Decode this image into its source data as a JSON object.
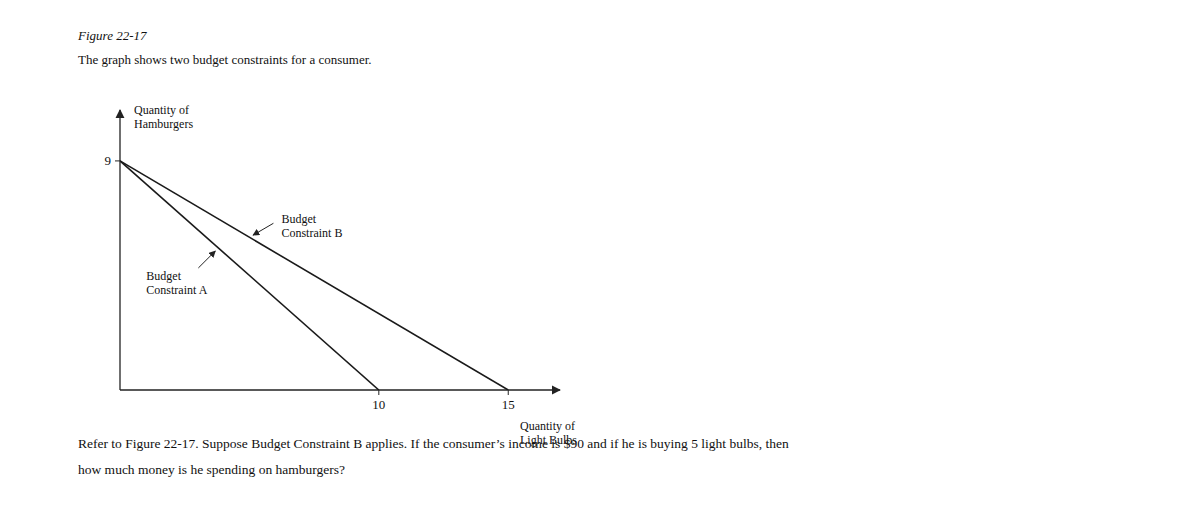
{
  "chart_data": {
    "type": "line",
    "title": "Figure 22-17",
    "subtitle": "The graph shows two budget constraints for a consumer.",
    "xlabel": "Quantity of\nLight Bulbs",
    "ylabel": "Quantity of\nHamburgers",
    "series": [
      {
        "x": [
          0,
          15
        ],
        "values": [
          9,
          0
        ],
        "color": "#1a1a1a"
      },
      {
        "x": [
          0,
          10
        ],
        "values": [
          9,
          0
        ],
        "color": "#1a1a1a"
      }
    ],
    "annotations": [
      {
        "text": "Budget\nConstraint B"
      },
      {
        "text": "Budget\nConstraint A"
      }
    ],
    "caption": [
      "Refer to Figure 22-17. Suppose Budget Constraint B applies. If the consumer’s income is $90 and if he is buying 5 light bulbs, then",
      "how much money is he spending on hamburgers?"
    ],
    "xlim": [
      0,
      17
    ],
    "ylim": [
      0,
      11
    ],
    "xticks": [
      10,
      15
    ],
    "yticks": [
      9
    ],
    "grid": false
  }
}
